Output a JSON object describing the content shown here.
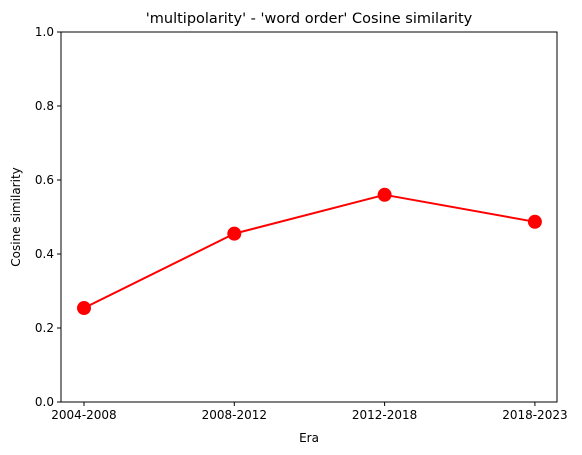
{
  "chart_data": {
    "type": "line",
    "title": "'multipolarity' - 'word order' Cosine similarity",
    "xlabel": "Era",
    "ylabel": "Cosine similarity",
    "categories": [
      "2004-2008",
      "2008-2012",
      "2012-2018",
      "2018-2023"
    ],
    "series": [
      {
        "values": [
          0.254,
          0.455,
          0.56,
          0.487
        ]
      }
    ],
    "ylim": [
      0.0,
      1.0
    ],
    "yticks": [
      "0.0",
      "0.2",
      "0.4",
      "0.6",
      "0.8",
      "1.0"
    ],
    "grid": false,
    "colors": {
      "line": "#ff0000",
      "marker": "#ff0000"
    }
  }
}
